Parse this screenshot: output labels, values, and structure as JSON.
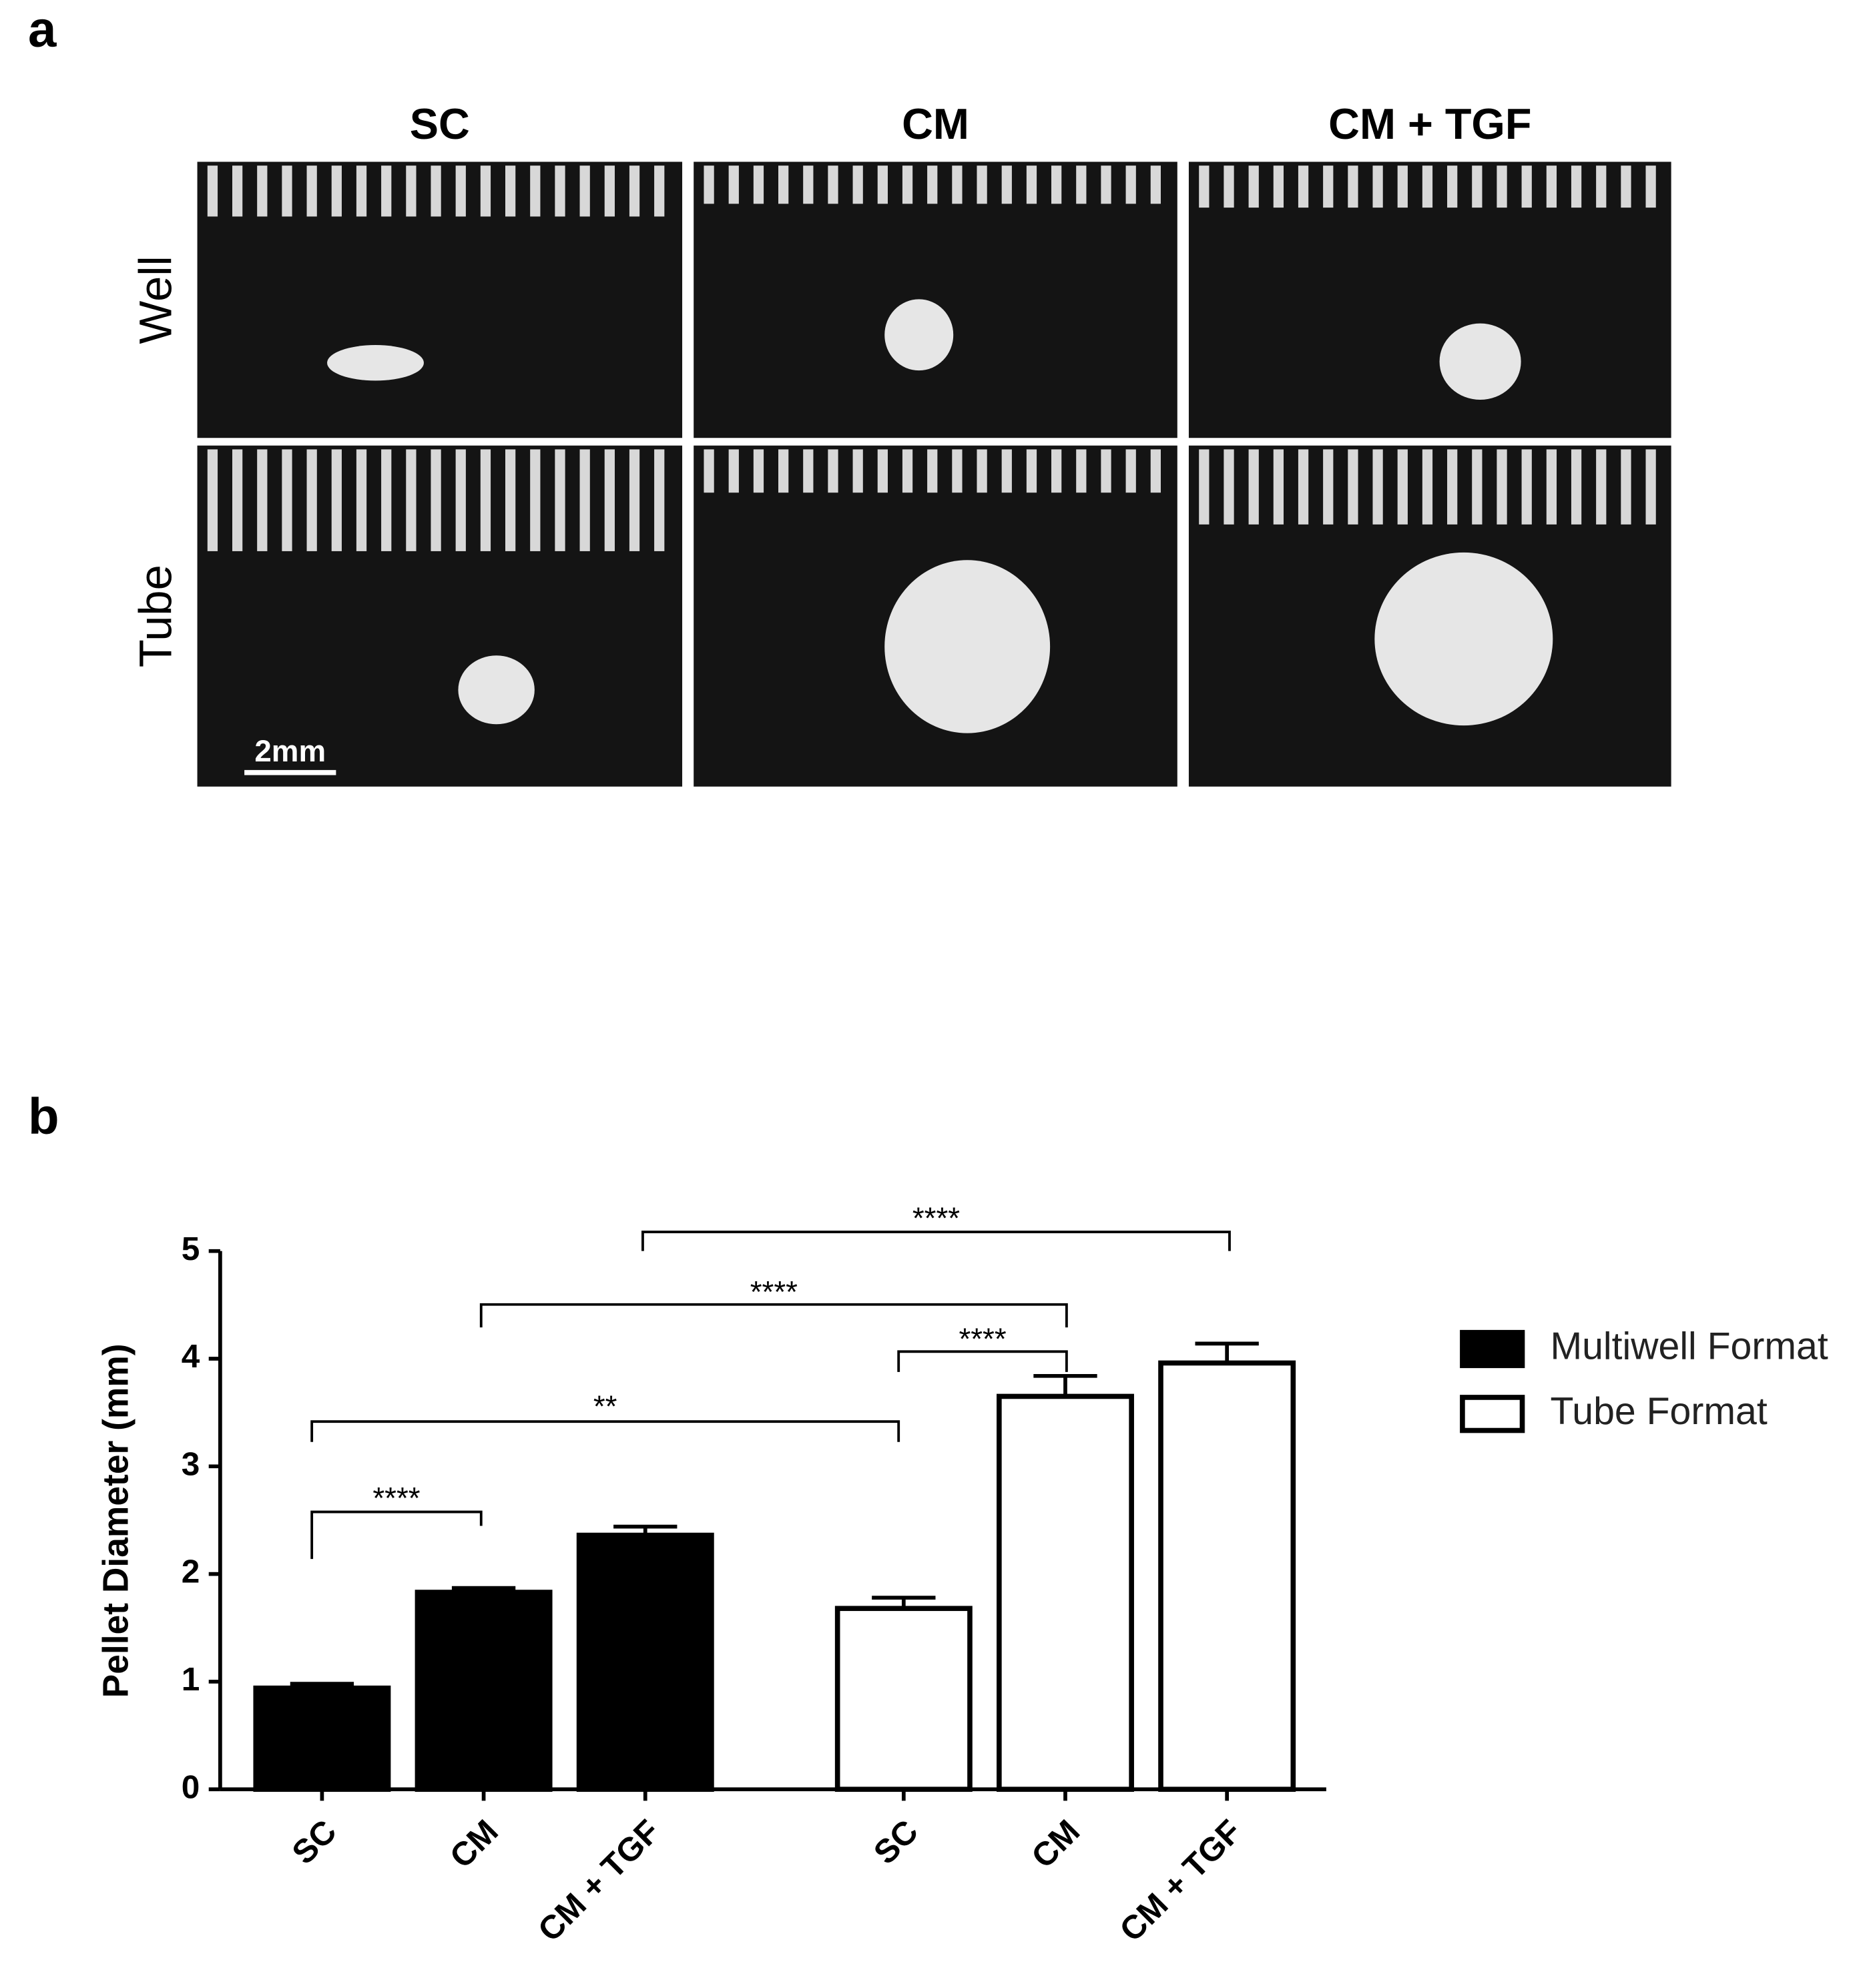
{
  "panel_labels": [
    "a",
    "b"
  ],
  "panel_a": {
    "columns": [
      "SC",
      "CM",
      "CM + TGF"
    ],
    "rows": [
      "Well",
      "Tube"
    ],
    "scale_bar": "2mm"
  },
  "chart_data": {
    "type": "bar",
    "ylabel": "Pellet Diameter (mm)",
    "categories": [
      "SC",
      "CM",
      "CM + TGF"
    ],
    "series": [
      {
        "name": "Multiwell Format",
        "color": "#000000",
        "values": [
          0.94,
          1.83,
          2.36
        ],
        "errors": [
          0.04,
          0.04,
          0.08
        ]
      },
      {
        "name": "Tube Format",
        "color": "#ffffff",
        "values": [
          1.68,
          3.65,
          3.96
        ],
        "errors": [
          0.1,
          0.19,
          0.18
        ]
      }
    ],
    "ylim": [
      0,
      5
    ],
    "yticks": [
      0,
      1,
      2,
      3,
      4,
      5
    ],
    "annotations": [
      "****",
      "**",
      "****",
      "****",
      "****"
    ],
    "legend": "right"
  }
}
